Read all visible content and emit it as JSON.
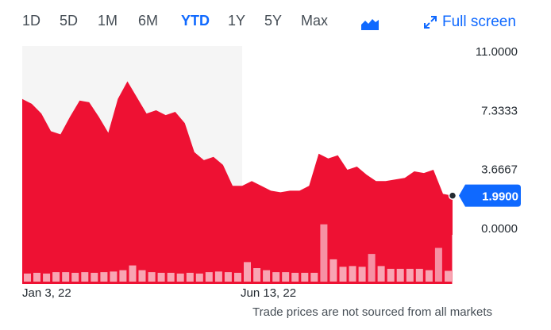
{
  "toolbar": {
    "ranges": [
      "1D",
      "5D",
      "1M",
      "6M",
      "YTD",
      "1Y",
      "5Y",
      "Max"
    ],
    "active_range": "YTD",
    "chart_type_icon": "mountain-chart-icon",
    "fullscreen_label": "Full screen",
    "fullscreen_icon": "expand-arrows-icon"
  },
  "colors": {
    "price_area": "#ee1133",
    "volume_bar": "#ee1133",
    "volume_bar_highlight": "#f6a0b0",
    "shade": "#f5f5f5",
    "badge": "#0f69ff",
    "accent": "#0f69ff"
  },
  "chart_data": {
    "type": "area",
    "y_ticks": [
      "11.0000",
      "7.3333",
      "3.6667",
      "0.0000"
    ],
    "ylim": [
      0,
      11
    ],
    "x_tick_labels": [
      "Jan 3, 22",
      "Jun 13, 22"
    ],
    "current_price": 1.99,
    "current_price_label": "1.9900",
    "price_series": [
      8.0,
      7.7,
      7.1,
      6.0,
      5.8,
      6.9,
      7.9,
      7.8,
      6.9,
      5.9,
      8.0,
      9.1,
      8.1,
      7.1,
      7.3,
      7.0,
      7.2,
      6.5,
      4.7,
      4.2,
      4.4,
      3.9,
      2.6,
      2.6,
      2.9,
      2.6,
      2.3,
      2.2,
      2.3,
      2.3,
      2.6,
      4.6,
      4.3,
      4.5,
      3.6,
      3.8,
      3.3,
      2.9,
      2.9,
      3.0,
      3.1,
      3.5,
      3.4,
      3.6,
      2.1,
      1.99
    ],
    "volume_series": [
      1,
      1,
      1,
      1,
      1,
      1,
      1,
      1,
      1,
      1,
      1,
      1,
      1,
      1,
      1,
      1,
      1,
      1,
      1,
      1,
      1,
      1,
      1,
      1,
      1,
      1,
      1,
      1,
      1,
      1,
      1,
      1,
      1,
      1,
      1,
      1,
      1,
      1,
      1,
      1,
      1,
      1,
      1,
      1,
      1,
      1,
      1,
      1,
      1,
      1,
      1,
      1,
      1,
      1,
      1,
      1,
      1,
      1,
      1,
      1,
      1,
      1,
      1,
      1,
      1,
      1,
      1,
      1,
      1,
      1,
      1,
      1,
      1,
      1,
      1,
      1,
      1,
      1,
      1,
      1,
      1,
      1,
      1,
      1,
      1,
      1,
      1,
      1,
      1,
      1,
      1,
      1,
      1,
      1,
      1,
      1,
      1,
      1,
      1,
      1
    ],
    "volume_bars": [
      1.2,
      1.3,
      1.2,
      1.4,
      1.4,
      1.3,
      1.4,
      1.3,
      1.4,
      1.5,
      1.7,
      2.4,
      1.7,
      1.4,
      1.3,
      1.3,
      1.2,
      1.3,
      1.2,
      1.4,
      1.5,
      1.4,
      1.3,
      2.9,
      2.0,
      1.7,
      1.4,
      1.4,
      1.3,
      1.3,
      1.3,
      8.5,
      3.3,
      2.2,
      2.3,
      2.2,
      4.1,
      2.3,
      1.9,
      1.9,
      1.9,
      1.9,
      1.7,
      5.0,
      1.6
    ],
    "volume_highlight_index": [
      31
    ],
    "footnote": "Trade prices are not sourced from all markets"
  }
}
